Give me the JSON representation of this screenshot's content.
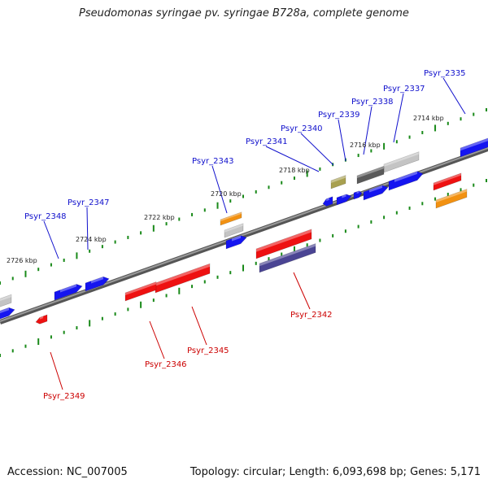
{
  "title": "Pseudomonas syringae pv. syringae B728a, complete genome",
  "footer": {
    "accession": "Accession: NC_007005",
    "summary": "Topology: circular; Length: 6,093,698 bp; Genes: 5,171"
  },
  "colors": {
    "backbone": "#777777",
    "ticks": "#1a8a1a",
    "label_forward": "#1010cc",
    "label_reverse": "#cc0000",
    "gene_blue": "#1515f0",
    "gene_red": "#ee1111",
    "gene_orange": "#f29111",
    "gene_gray": "#c4c4c4",
    "gene_darkgray": "#5a5a5a",
    "gene_olive": "#a8a050",
    "gene_purple": "#4a4493"
  },
  "kbp_labels": [
    "2714 kbp",
    "2716 kbp",
    "2718 kbp",
    "2720 kbp",
    "2722 kbp",
    "2724 kbp",
    "2726 kbp"
  ],
  "gene_labels_forward": [
    "Psyr_2335",
    "Psyr_2337",
    "Psyr_2338",
    "Psyr_2339",
    "Psyr_2340",
    "Psyr_2341",
    "Psyr_2343",
    "Psyr_2347",
    "Psyr_2348"
  ],
  "gene_labels_reverse": [
    "Psyr_2342",
    "Psyr_2345",
    "Psyr_2346",
    "Psyr_2349"
  ]
}
